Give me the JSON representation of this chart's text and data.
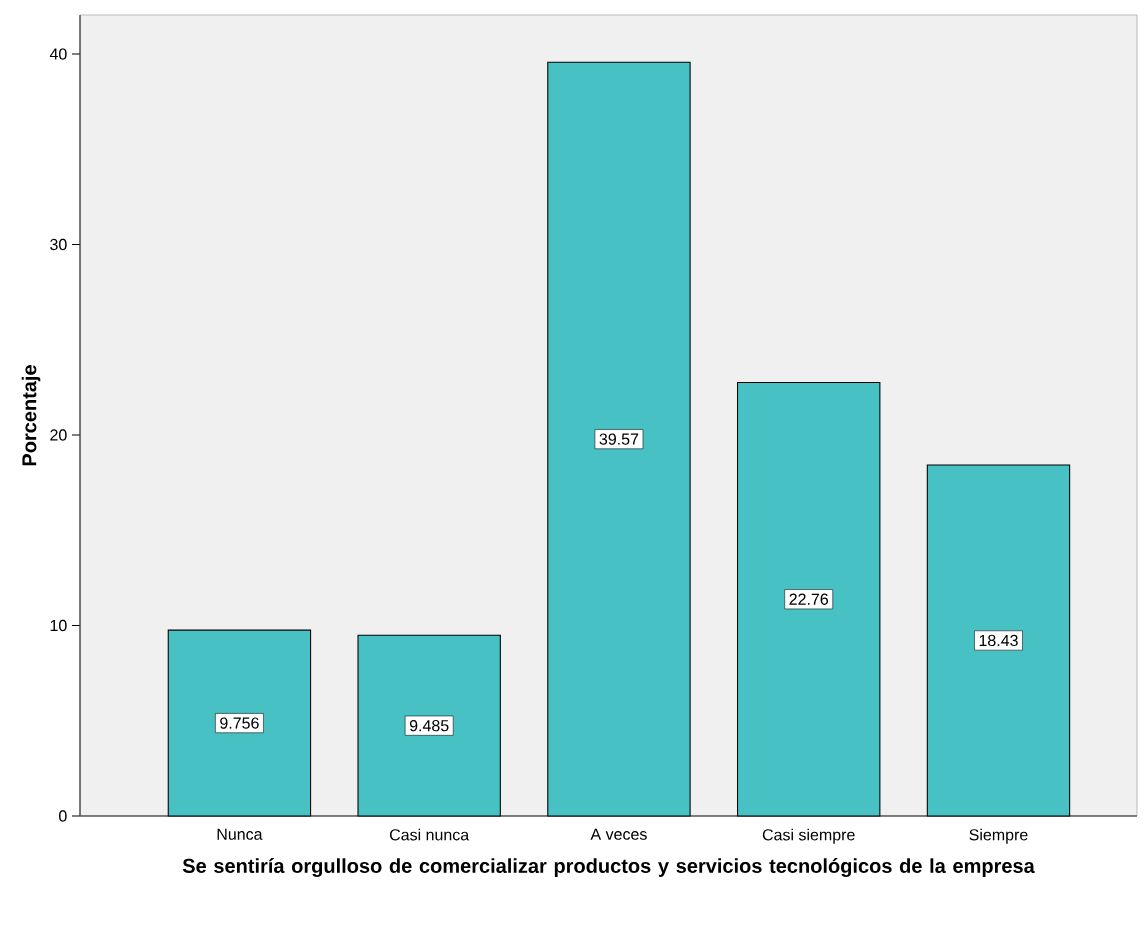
{
  "chart_data": {
    "type": "bar",
    "xlabel": "Se sentiría orgulloso de comercializar productos y servicios tecnológicos de la empresa",
    "ylabel": "Porcentaje",
    "categories": [
      "Nunca",
      "Casi nunca",
      "A veces",
      "Casi siempre",
      "Siempre"
    ],
    "values": [
      9.756,
      9.485,
      39.57,
      22.76,
      18.43
    ],
    "color": "#48c1c4",
    "data_labels": true,
    "ylim": [
      0,
      42.05
    ],
    "yticks": [
      0,
      10,
      20,
      30,
      40
    ]
  }
}
